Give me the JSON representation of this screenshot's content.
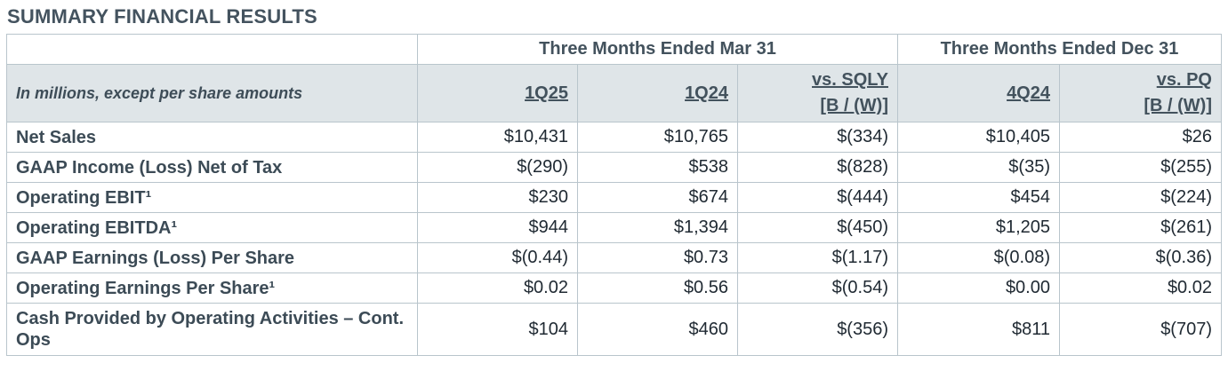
{
  "title": "SUMMARY FINANCIAL RESULTS",
  "header": {
    "group1": "Three Months Ended Mar 31",
    "group2": "Three Months Ended Dec 31",
    "note": "In millions, except per share amounts",
    "cols": [
      {
        "line1": "1Q25",
        "line2": ""
      },
      {
        "line1": "1Q24",
        "line2": ""
      },
      {
        "line1": "vs. SQLY",
        "line2": "[B / (W)]"
      },
      {
        "line1": "4Q24",
        "line2": ""
      },
      {
        "line1": "vs. PQ",
        "line2": "[B / (W)]"
      }
    ]
  },
  "rows": [
    {
      "label": "Net Sales",
      "values": [
        "$10,431",
        "$10,765",
        "$(334)",
        "$10,405",
        "$26"
      ]
    },
    {
      "label": "GAAP Income (Loss) Net of Tax",
      "values": [
        "$(290)",
        "$538",
        "$(828)",
        "$(35)",
        "$(255)"
      ]
    },
    {
      "label": "Operating EBIT¹",
      "values": [
        "$230",
        "$674",
        "$(444)",
        "$454",
        "$(224)"
      ]
    },
    {
      "label": "Operating EBITDA¹",
      "values": [
        "$944",
        "$1,394",
        "$(450)",
        "$1,205",
        "$(261)"
      ]
    },
    {
      "label": "GAAP Earnings (Loss) Per Share",
      "values": [
        "$(0.44)",
        "$0.73",
        "$(1.17)",
        "$(0.08)",
        "$(0.36)"
      ]
    },
    {
      "label": "Operating Earnings Per Share¹",
      "values": [
        "$0.02",
        "$0.56",
        "$(0.54)",
        "$0.00",
        "$0.02"
      ]
    },
    {
      "label": "Cash Provided by Operating Activities – Cont. Ops",
      "values": [
        "$104",
        "$460",
        "$(356)",
        "$811",
        "$(707)"
      ]
    }
  ]
}
